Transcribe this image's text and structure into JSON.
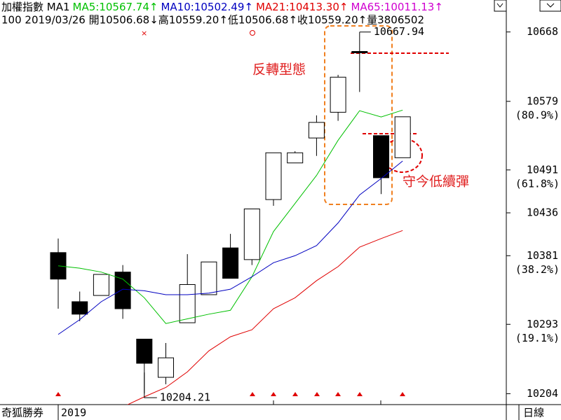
{
  "chart_data": {
    "type": "candlestick",
    "header": [
      {
        "text": "加權指數 MA1",
        "color": "#000000"
      },
      {
        "text": "MA5:10567.74↑",
        "color": "#00c000"
      },
      {
        "text": "MA10:10502.49↑",
        "color": "#0000c0"
      },
      {
        "text": "MA21:10413.30↑",
        "color": "#e00000"
      },
      {
        "text": "MA65:10011.13↑",
        "color": "#d000d0"
      }
    ],
    "info": "100 2019/03/26 開10506.68↓高10559.20↑低10506.68↑收10559.20↑量3806502",
    "categories": [
      null,
      null,
      null,
      null,
      null,
      null,
      null,
      null,
      null,
      null,
      null,
      null,
      null,
      null,
      null,
      null,
      null
    ],
    "open": [
      10385,
      10322,
      10330,
      10360,
      10274,
      10225,
      10295,
      10331,
      10391,
      10376,
      10453,
      10500,
      10532,
      10565,
      10643,
      10535,
      10506.68
    ],
    "close": [
      10351,
      10306,
      10357,
      10313,
      10243,
      10250,
      10344,
      10373,
      10352,
      10441,
      10513,
      10513,
      10552,
      10610,
      10642,
      10481,
      10559.2
    ],
    "high": [
      10403,
      10335,
      10357,
      10369,
      10274,
      10269,
      10383,
      10373,
      10409,
      10441,
      10513,
      10515,
      10561,
      10613,
      10667.94,
      10535,
      10559.2
    ],
    "low": [
      10313,
      10297,
      10330,
      10300,
      10204.21,
      10216,
      10295,
      10331,
      10352,
      10369,
      10445,
      10500,
      10509,
      10554,
      10591,
      10460,
      10506.68
    ],
    "series": [
      {
        "name": "MA5",
        "color": "#00c000",
        "values": [
          10368,
          10365,
          10360,
          10351,
          10327,
          10294,
          10300,
          10306,
          10311,
          10354,
          10412,
          10448,
          10484,
          10529,
          10567,
          10559,
          10567.74
        ]
      },
      {
        "name": "MA10",
        "color": "#0000c0",
        "values": [
          10280,
          10299,
          10322,
          10338,
          10336,
          10331,
          10331,
          10333,
          10338,
          10354,
          10372,
          10381,
          10394,
          10423,
          10459,
          10480,
          10502.49
        ]
      },
      {
        "name": "MA21",
        "color": "#e00000",
        "values": [
          null,
          null,
          null,
          10187,
          10200,
          10212,
          10232,
          10259,
          10277,
          10286,
          10313,
          10327,
          10349,
          10367,
          10392,
          10403,
          10413.3
        ]
      }
    ],
    "ylim": [
      10190,
      10709
    ],
    "yticks": [
      10668,
      10579,
      10491,
      10436,
      10381,
      10293,
      10204
    ],
    "fib_levels": [
      {
        "value": 10579,
        "label": "(80.9%)"
      },
      {
        "value": 10491,
        "label": "(61.8%)"
      },
      {
        "value": 10381,
        "label": "(38.2%)"
      },
      {
        "value": 10293,
        "label": "(19.1%)"
      }
    ],
    "high_label": "10667.94",
    "low_label": "10204.21",
    "annotations": [
      "反轉型態",
      "守今低續彈"
    ],
    "footer": {
      "left": "奇狐勝券",
      "year": "2019",
      "right": "日線"
    }
  }
}
